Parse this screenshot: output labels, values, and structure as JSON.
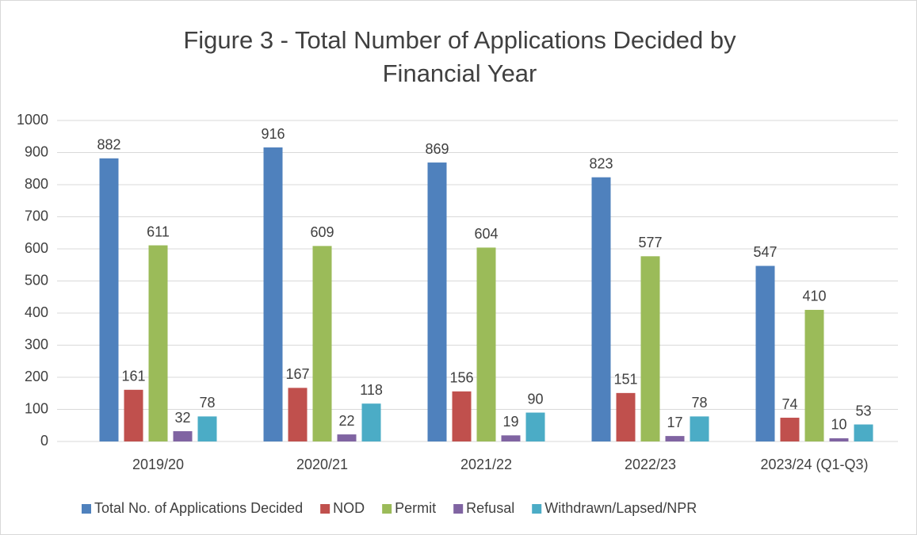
{
  "chart_data": {
    "type": "bar",
    "title": "Figure 3 - Total Number of Applications Decided by Financial Year",
    "categories": [
      "2019/20",
      "2020/21",
      "2021/22",
      "2022/23",
      "2023/24 (Q1-Q3)"
    ],
    "series": [
      {
        "name": "Total No. of Applications Decided",
        "color": "#4f81bd",
        "values": [
          882,
          916,
          869,
          823,
          547
        ]
      },
      {
        "name": "NOD",
        "color": "#c0504d",
        "values": [
          161,
          167,
          156,
          151,
          74
        ]
      },
      {
        "name": "Permit",
        "color": "#9bbb59",
        "values": [
          611,
          609,
          604,
          577,
          410
        ]
      },
      {
        "name": "Refusal",
        "color": "#8064a2",
        "values": [
          32,
          22,
          19,
          17,
          10
        ]
      },
      {
        "name": "Withdrawn/Lapsed/NPR",
        "color": "#4bacc6",
        "values": [
          78,
          118,
          90,
          78,
          53
        ]
      }
    ],
    "ylim": [
      0,
      1000
    ],
    "yticks": [
      0,
      100,
      200,
      300,
      400,
      500,
      600,
      700,
      800,
      900,
      1000
    ],
    "grid": true,
    "legend": "bottom"
  }
}
